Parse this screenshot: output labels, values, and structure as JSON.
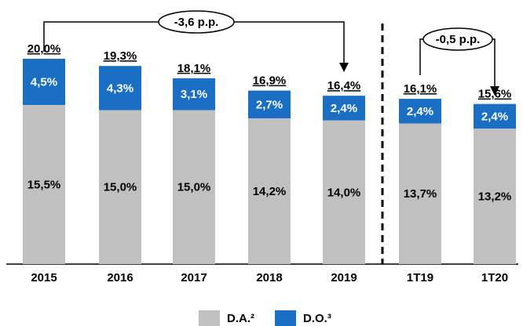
{
  "chart_data": {
    "type": "stacked_bar",
    "categories": [
      "2015",
      "2016",
      "2017",
      "2018",
      "2019",
      "1T19",
      "1T20"
    ],
    "series": [
      {
        "name": "D.A.²",
        "color": "#c0c0c0",
        "values": [
          15.5,
          15.0,
          15.0,
          14.2,
          14.0,
          13.7,
          13.2
        ],
        "value_labels": [
          "15,5%",
          "15,0%",
          "15,0%",
          "14,2%",
          "14,0%",
          "13,7%",
          "13,2%"
        ]
      },
      {
        "name": "D.O.³",
        "color": "#1a6fc4",
        "values": [
          4.5,
          4.3,
          3.1,
          2.7,
          2.4,
          2.4,
          2.4
        ],
        "value_labels": [
          "4,5%",
          "4,3%",
          "3,1%",
          "2,7%",
          "2,4%",
          "2,4%",
          "2,4%"
        ]
      }
    ],
    "totals": [
      20.0,
      19.3,
      18.1,
      16.9,
      16.4,
      16.1,
      15.6
    ],
    "total_labels": [
      "20,0%",
      "19,3%",
      "18,1%",
      "16,9%",
      "16,4%",
      "16,1%",
      "15,6%"
    ],
    "annotations": [
      "-3,6 p.p.",
      "-0,5 p.p."
    ]
  }
}
